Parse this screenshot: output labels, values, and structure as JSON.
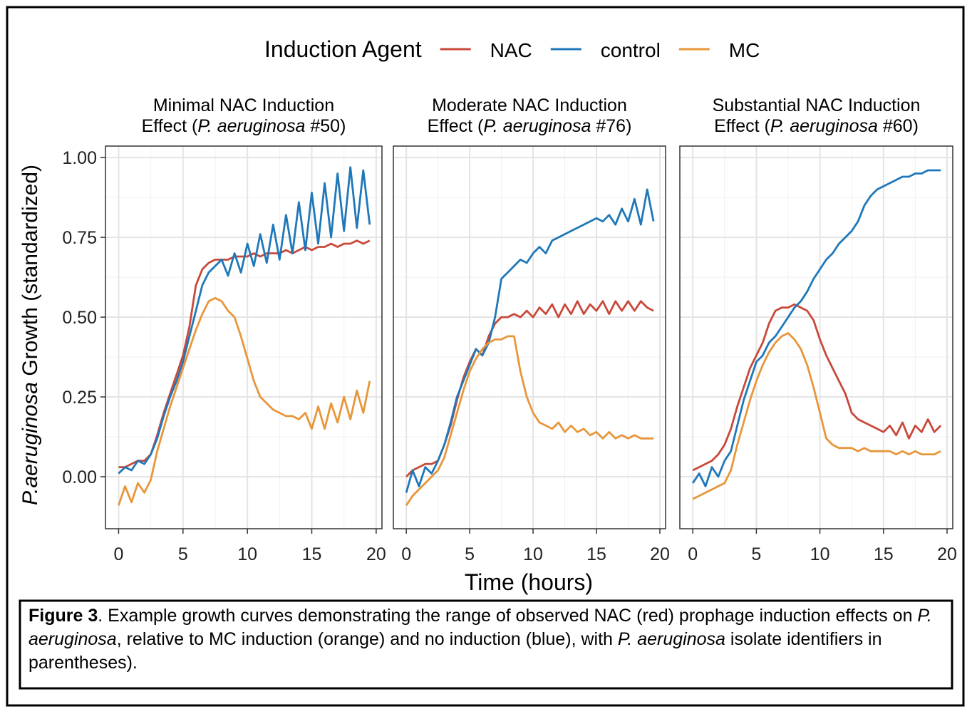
{
  "figure": {
    "legend_title": "Induction Agent",
    "x_label": "Time (hours)",
    "y_label": [
      "P.aeruginosa",
      " Growth (standardized)"
    ]
  },
  "caption": [
    {
      "text": "Figure 3",
      "style": "bold"
    },
    {
      "text": ". Example growth curves demonstrating the range of observed NAC (red) prophage induction effects on ",
      "style": "normal"
    },
    {
      "text": "P. aeruginosa",
      "style": "italic"
    },
    {
      "text": ", relative to MC induction (orange) and no induction (blue), with ",
      "style": "normal"
    },
    {
      "text": "P. aeruginosa",
      "style": "italic"
    },
    {
      "text": " isolate identifiers in parentheses).",
      "style": "normal"
    }
  ],
  "chart_data": [
    {
      "type": "line",
      "title": [
        "Minimal NAC Induction",
        "Effect (",
        "P. aeruginosa",
        " #50)"
      ],
      "x": [
        0,
        0.5,
        1,
        1.5,
        2,
        2.5,
        3,
        3.5,
        4,
        4.5,
        5,
        5.5,
        6,
        6.5,
        7,
        7.5,
        8,
        8.5,
        9,
        9.5,
        10,
        10.5,
        11,
        11.5,
        12,
        12.5,
        13,
        13.5,
        14,
        14.5,
        15,
        15.5,
        16,
        16.5,
        17,
        17.5,
        18,
        18.5,
        19,
        19.5
      ],
      "xlim": [
        -1.02,
        20.45
      ],
      "xticks": [
        0,
        5,
        10,
        15,
        20
      ],
      "ylim": [
        -0.163,
        1.036
      ],
      "yticks": [
        {
          "value": 0,
          "label": "0.00"
        },
        0.25,
        {
          "value": 0.5,
          "label": "0.50"
        },
        0.75,
        {
          "value": 1,
          "label": "1.00"
        }
      ],
      "grid": true,
      "series": [
        {
          "name": "NAC",
          "color": "#c8493a",
          "values": [
            0.03,
            0.03,
            0.04,
            0.05,
            0.05,
            0.07,
            0.13,
            0.2,
            0.26,
            0.32,
            0.38,
            0.47,
            0.6,
            0.65,
            0.67,
            0.68,
            0.68,
            0.68,
            0.69,
            0.69,
            0.69,
            0.7,
            0.69,
            0.7,
            0.7,
            0.7,
            0.71,
            0.7,
            0.71,
            0.72,
            0.71,
            0.72,
            0.72,
            0.73,
            0.72,
            0.73,
            0.73,
            0.74,
            0.73,
            0.74
          ]
        },
        {
          "name": "control",
          "color": "#1f78b9",
          "values": [
            0.01,
            0.03,
            0.02,
            0.05,
            0.04,
            0.07,
            0.12,
            0.19,
            0.25,
            0.3,
            0.36,
            0.44,
            0.52,
            0.6,
            0.64,
            0.66,
            0.68,
            0.63,
            0.7,
            0.64,
            0.73,
            0.66,
            0.76,
            0.67,
            0.79,
            0.68,
            0.82,
            0.7,
            0.86,
            0.71,
            0.89,
            0.73,
            0.92,
            0.75,
            0.95,
            0.77,
            0.97,
            0.78,
            0.96,
            0.79
          ]
        },
        {
          "name": "MC",
          "color": "#e8963a",
          "values": [
            -0.09,
            -0.03,
            -0.08,
            -0.02,
            -0.05,
            -0.01,
            0.08,
            0.15,
            0.22,
            0.28,
            0.34,
            0.4,
            0.46,
            0.51,
            0.55,
            0.56,
            0.55,
            0.52,
            0.5,
            0.44,
            0.37,
            0.3,
            0.25,
            0.23,
            0.21,
            0.2,
            0.19,
            0.19,
            0.18,
            0.2,
            0.15,
            0.22,
            0.15,
            0.23,
            0.17,
            0.25,
            0.18,
            0.27,
            0.2,
            0.3
          ]
        }
      ]
    },
    {
      "type": "line",
      "title": [
        "Moderate NAC Induction",
        "Effect (",
        "P. aeruginosa",
        " #76)"
      ],
      "x": [
        0,
        0.5,
        1,
        1.5,
        2,
        2.5,
        3,
        3.5,
        4,
        4.5,
        5,
        5.5,
        6,
        6.5,
        7,
        7.5,
        8,
        8.5,
        9,
        9.5,
        10,
        10.5,
        11,
        11.5,
        12,
        12.5,
        13,
        13.5,
        14,
        14.5,
        15,
        15.5,
        16,
        16.5,
        17,
        17.5,
        18,
        18.5,
        19,
        19.5
      ],
      "xlim": [
        -1.02,
        20.45
      ],
      "xticks": [
        0,
        5,
        10,
        15,
        20
      ],
      "ylim": [
        -0.163,
        1.036
      ],
      "yticks": [
        {
          "value": 0,
          "label": "0.00"
        },
        0.25,
        {
          "value": 0.5,
          "label": "0.50"
        },
        0.75,
        {
          "value": 1,
          "label": "1.00"
        }
      ],
      "grid": true,
      "series": [
        {
          "name": "NAC",
          "color": "#c8493a",
          "values": [
            0,
            0.02,
            0.03,
            0.04,
            0.04,
            0.05,
            0.1,
            0.16,
            0.24,
            0.31,
            0.36,
            0.4,
            0.38,
            0.44,
            0.48,
            0.5,
            0.5,
            0.51,
            0.5,
            0.52,
            0.5,
            0.53,
            0.51,
            0.54,
            0.5,
            0.54,
            0.51,
            0.55,
            0.51,
            0.54,
            0.52,
            0.55,
            0.51,
            0.55,
            0.52,
            0.55,
            0.52,
            0.55,
            0.53,
            0.52
          ]
        },
        {
          "name": "control",
          "color": "#1f78b9",
          "values": [
            -0.05,
            0.02,
            -0.03,
            0.03,
            0.01,
            0.05,
            0.1,
            0.17,
            0.25,
            0.3,
            0.35,
            0.4,
            0.38,
            0.42,
            0.5,
            0.62,
            0.64,
            0.66,
            0.68,
            0.67,
            0.7,
            0.72,
            0.7,
            0.74,
            0.75,
            0.76,
            0.77,
            0.78,
            0.79,
            0.8,
            0.81,
            0.8,
            0.82,
            0.79,
            0.84,
            0.8,
            0.87,
            0.79,
            0.9,
            0.8
          ]
        },
        {
          "name": "MC",
          "color": "#e8963a",
          "values": [
            -0.09,
            -0.06,
            -0.04,
            -0.02,
            0,
            0.02,
            0.06,
            0.13,
            0.2,
            0.27,
            0.33,
            0.37,
            0.4,
            0.42,
            0.43,
            0.43,
            0.44,
            0.44,
            0.33,
            0.25,
            0.2,
            0.17,
            0.16,
            0.15,
            0.17,
            0.14,
            0.16,
            0.14,
            0.15,
            0.13,
            0.14,
            0.12,
            0.14,
            0.12,
            0.13,
            0.12,
            0.13,
            0.12,
            0.12,
            0.12
          ]
        }
      ]
    },
    {
      "type": "line",
      "title": [
        "Substantial NAC Induction",
        "Effect (",
        "P. aeruginosa",
        " #60)"
      ],
      "x": [
        0,
        0.5,
        1,
        1.5,
        2,
        2.5,
        3,
        3.5,
        4,
        4.5,
        5,
        5.5,
        6,
        6.5,
        7,
        7.5,
        8,
        8.5,
        9,
        9.5,
        10,
        10.5,
        11,
        11.5,
        12,
        12.5,
        13,
        13.5,
        14,
        14.5,
        15,
        15.5,
        16,
        16.5,
        17,
        17.5,
        18,
        18.5,
        19,
        19.5
      ],
      "xlim": [
        -1.02,
        20.45
      ],
      "xticks": [
        0,
        5,
        10,
        15,
        20
      ],
      "ylim": [
        -0.163,
        1.036
      ],
      "yticks": [
        {
          "value": 0,
          "label": "0.00"
        },
        0.25,
        {
          "value": 0.5,
          "label": "0.50"
        },
        0.75,
        {
          "value": 1,
          "label": "1.00"
        }
      ],
      "grid": true,
      "series": [
        {
          "name": "NAC",
          "color": "#c8493a",
          "values": [
            0.02,
            0.03,
            0.04,
            0.05,
            0.07,
            0.1,
            0.15,
            0.22,
            0.28,
            0.34,
            0.38,
            0.42,
            0.48,
            0.52,
            0.53,
            0.53,
            0.54,
            0.53,
            0.52,
            0.49,
            0.43,
            0.38,
            0.34,
            0.3,
            0.26,
            0.2,
            0.18,
            0.17,
            0.16,
            0.15,
            0.14,
            0.16,
            0.13,
            0.17,
            0.12,
            0.16,
            0.14,
            0.18,
            0.14,
            0.16
          ]
        },
        {
          "name": "control",
          "color": "#1f78b9",
          "values": [
            -0.02,
            0.01,
            -0.03,
            0.03,
            0,
            0.05,
            0.08,
            0.16,
            0.24,
            0.3,
            0.36,
            0.38,
            0.42,
            0.44,
            0.47,
            0.5,
            0.53,
            0.55,
            0.58,
            0.62,
            0.65,
            0.68,
            0.7,
            0.73,
            0.75,
            0.77,
            0.8,
            0.85,
            0.88,
            0.9,
            0.91,
            0.92,
            0.93,
            0.94,
            0.94,
            0.95,
            0.95,
            0.96,
            0.96,
            0.96
          ]
        },
        {
          "name": "MC",
          "color": "#e8963a",
          "values": [
            -0.07,
            -0.06,
            -0.05,
            -0.04,
            -0.03,
            -0.02,
            0.02,
            0.1,
            0.17,
            0.24,
            0.3,
            0.35,
            0.39,
            0.42,
            0.44,
            0.45,
            0.43,
            0.4,
            0.35,
            0.28,
            0.2,
            0.12,
            0.1,
            0.09,
            0.09,
            0.09,
            0.08,
            0.09,
            0.08,
            0.08,
            0.08,
            0.08,
            0.07,
            0.08,
            0.07,
            0.08,
            0.07,
            0.07,
            0.07,
            0.08
          ]
        }
      ]
    }
  ]
}
